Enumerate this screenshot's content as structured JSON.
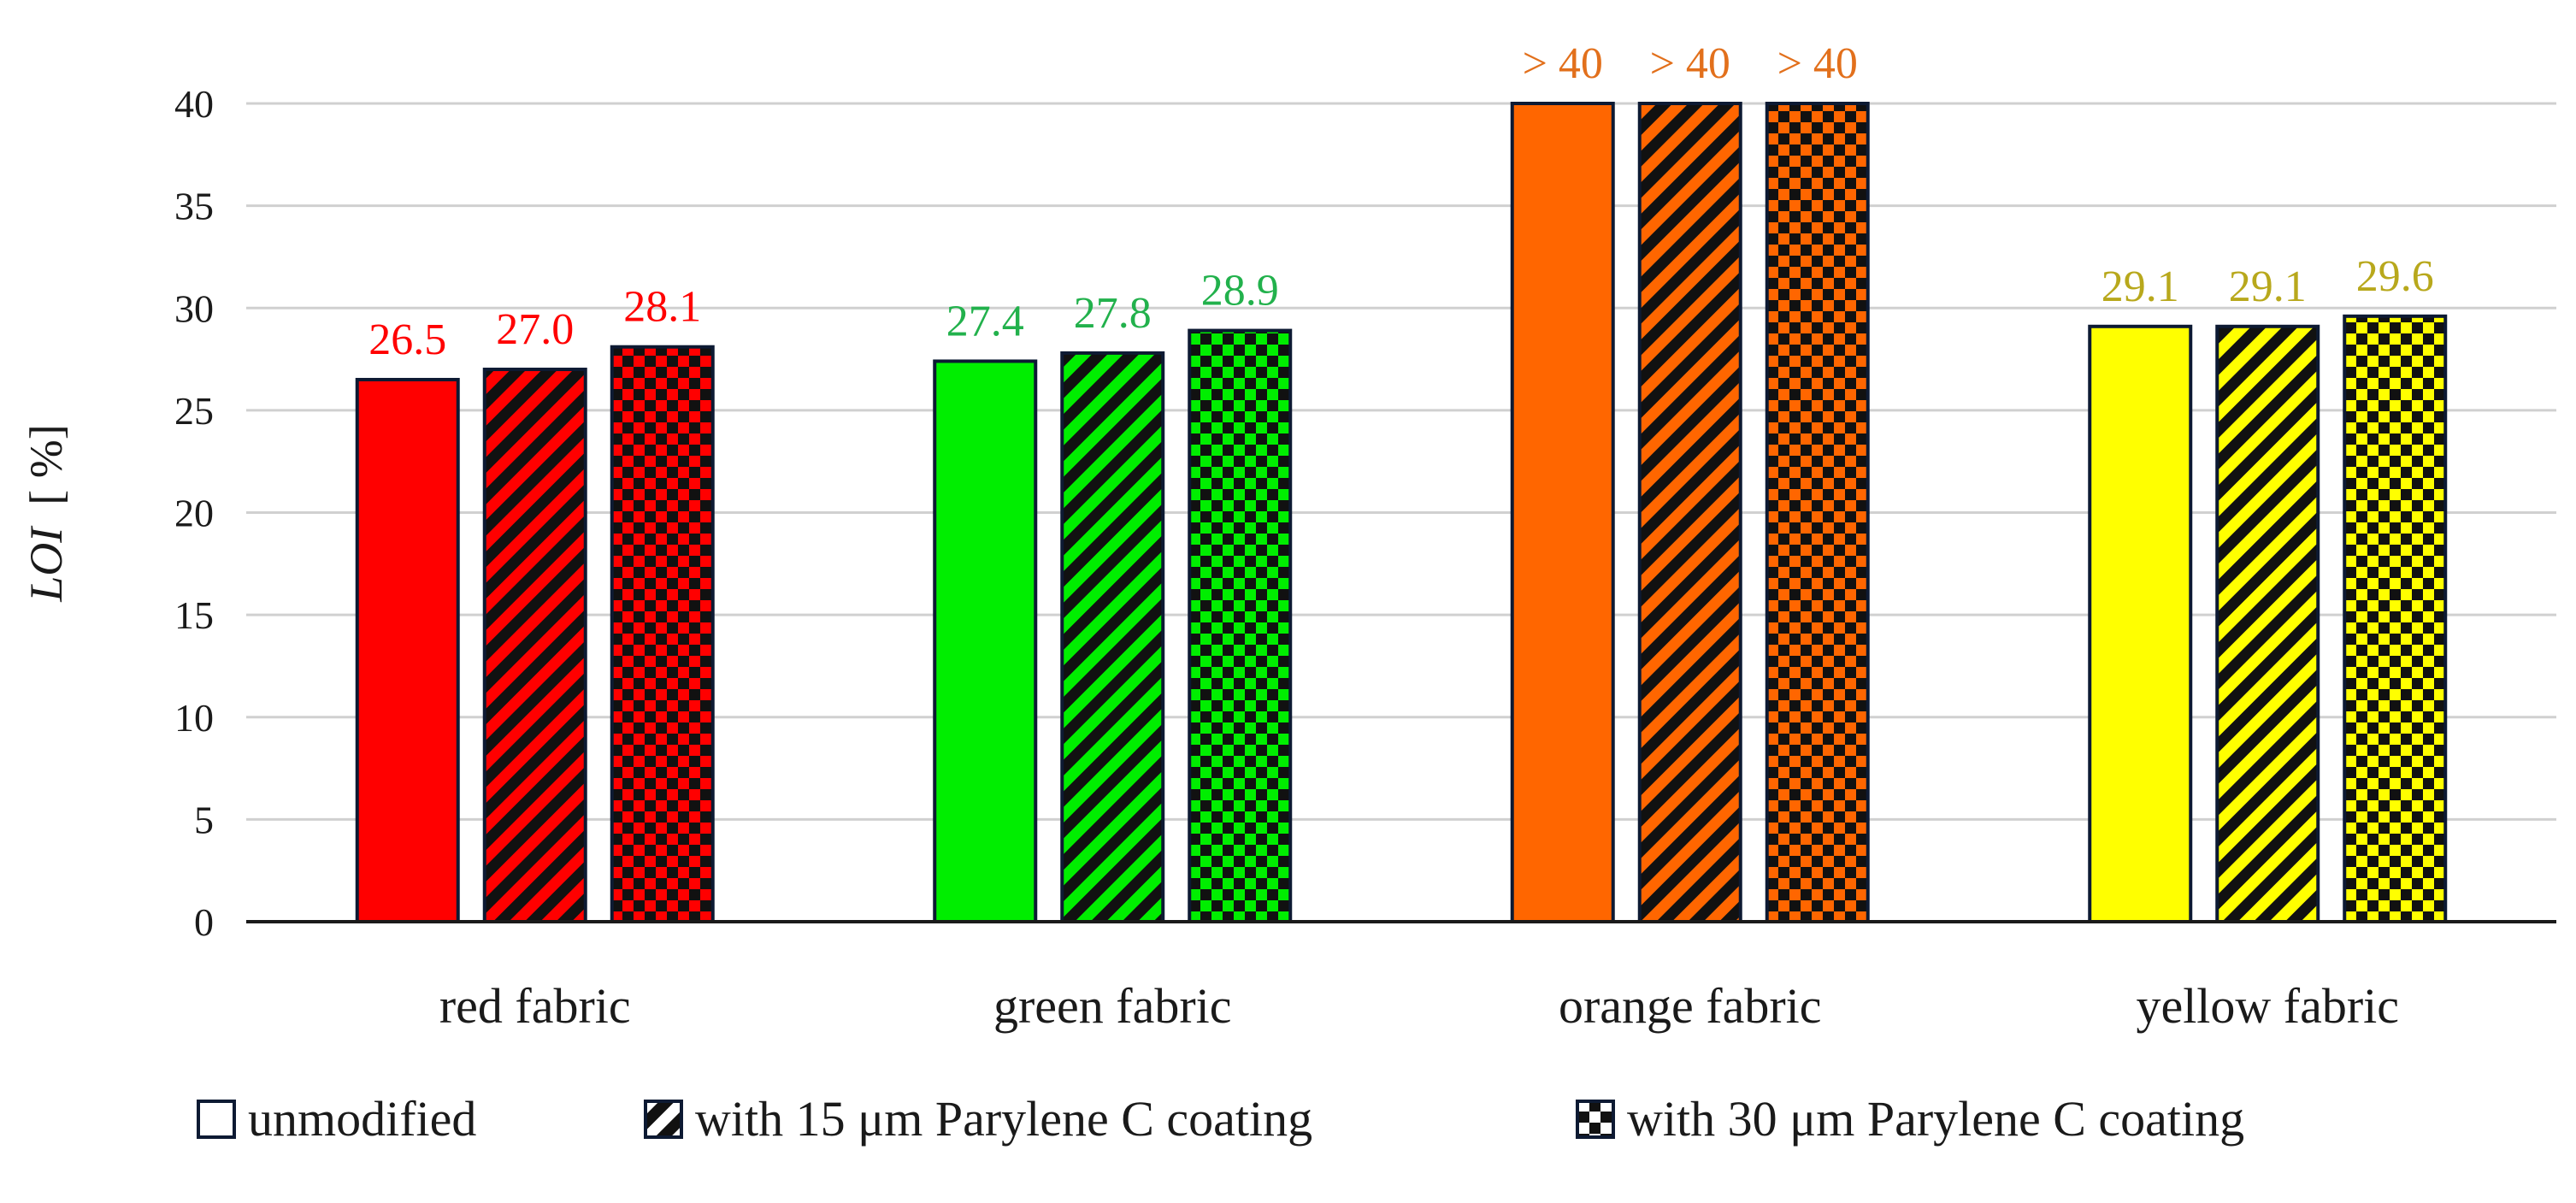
{
  "chart_data": {
    "type": "bar",
    "title": "",
    "xlabel": "",
    "ylabel": "LOI",
    "ylabel_unit": "[ %]",
    "ylim": [
      0,
      40
    ],
    "yticks": [
      0,
      5,
      10,
      15,
      20,
      25,
      30,
      35,
      40
    ],
    "grid": true,
    "legend_position": "bottom",
    "categories": [
      "red fabric",
      "green fabric",
      "orange fabric",
      "yellow fabric"
    ],
    "category_colors": [
      "#ff0000",
      "#00ee00",
      "#ff6600",
      "#ffff00"
    ],
    "label_colors": [
      "#ff0000",
      "#22b14c",
      "#e2701c",
      "#b8a81c"
    ],
    "series": [
      {
        "name": "unmodified",
        "pattern": "solid",
        "values": [
          26.5,
          27.4,
          40,
          29.1
        ],
        "labels": [
          "26.5",
          "27.4",
          "> 40",
          "29.1"
        ]
      },
      {
        "name": "with 15 μm Parylene C coating",
        "pattern": "diagonal-stripes",
        "values": [
          27.0,
          27.8,
          40,
          29.1
        ],
        "labels": [
          "27.0",
          "27.8",
          "> 40",
          "29.1"
        ]
      },
      {
        "name": "with 30 μm Parylene C coating",
        "pattern": "checkerboard",
        "values": [
          28.1,
          28.9,
          40,
          29.6
        ],
        "labels": [
          "28.1",
          "28.9",
          "> 40",
          "29.6"
        ]
      }
    ]
  }
}
